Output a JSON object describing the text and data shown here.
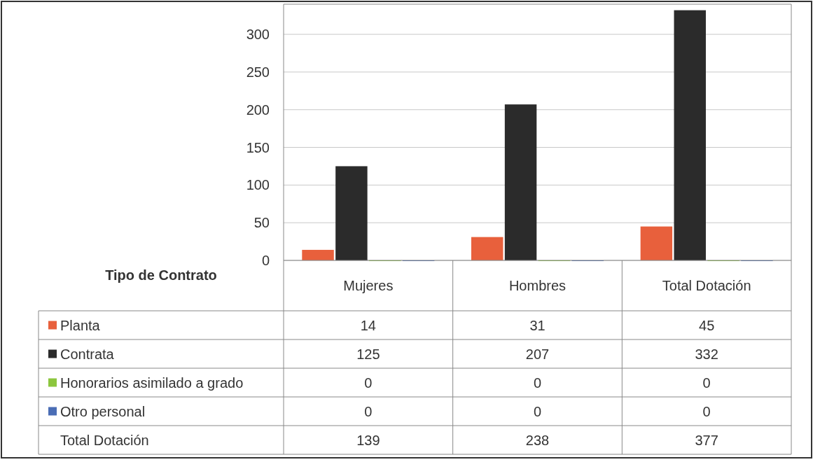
{
  "chart_data": {
    "type": "bar",
    "legend_title": "Tipo de Contrato",
    "categories": [
      "Mujeres",
      "Hombres",
      "Total Dotación"
    ],
    "series": [
      {
        "name": "Planta",
        "color": "#e8603c",
        "values": [
          14,
          31,
          45
        ]
      },
      {
        "name": "Contrata",
        "color": "#2b2b2b",
        "values": [
          125,
          207,
          332
        ]
      },
      {
        "name": "Honorarios asimilado a grado",
        "color": "#8cc63e",
        "values": [
          0,
          0,
          0
        ]
      },
      {
        "name": "Otro personal",
        "color": "#4a6db5",
        "values": [
          0,
          0,
          0
        ]
      }
    ],
    "ylim": [
      0,
      340
    ],
    "yticks": [
      0,
      50,
      100,
      150,
      200,
      250,
      300
    ],
    "grid": "y",
    "legend": "bottom left",
    "data_labels": true,
    "annotations": [
      "Total Dotación",
      "139",
      "238",
      "377"
    ]
  }
}
